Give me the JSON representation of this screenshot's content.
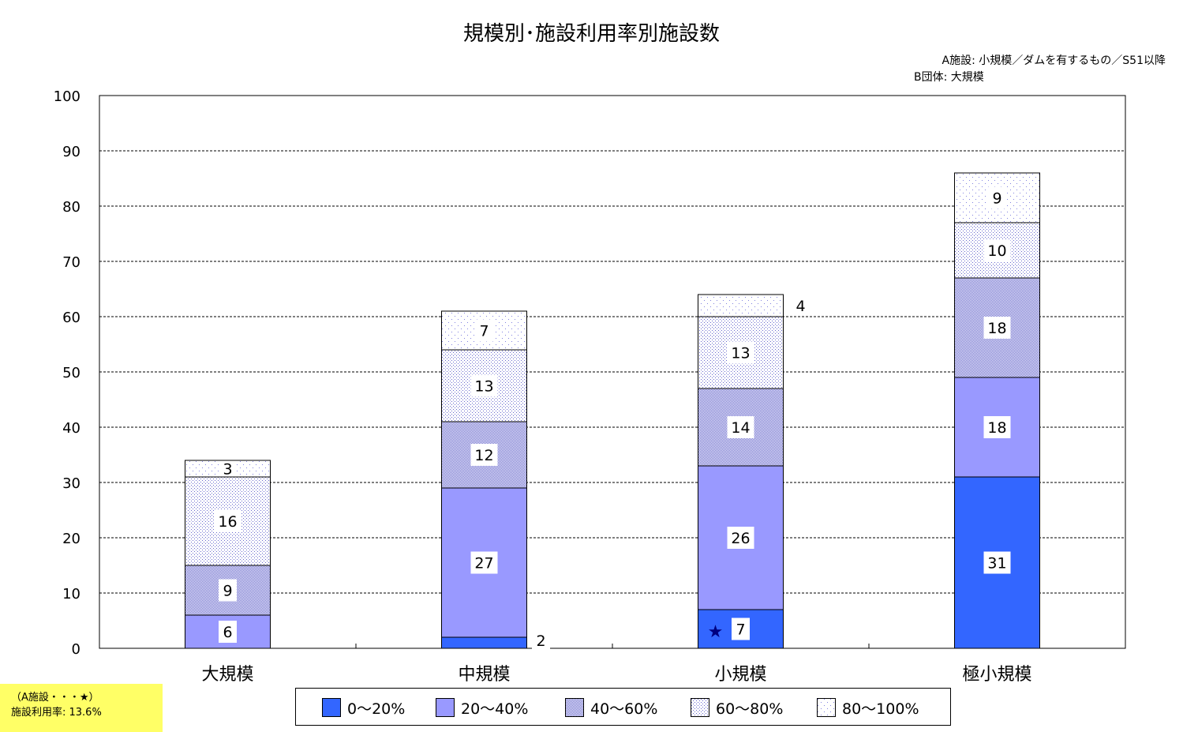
{
  "title": "規模別･施設利用率別施設数",
  "notes": {
    "line1": "A施設: 小規模／ダムを有するもの／S51以降",
    "line2": "B団体: 大規模"
  },
  "annotation": {
    "line1": "（A施設・・・★）",
    "line2": "施設利用率: 13.6%",
    "marker": "★",
    "marker_category_index": 2
  },
  "colors": {
    "s0": "#3366ff",
    "s1": "#9999ff",
    "hatch": "#6666cc",
    "dot": "#8080e0",
    "star": "#000080",
    "annotation_bg": "#ffff66"
  },
  "chart_data": {
    "type": "bar",
    "stacked": true,
    "categories": [
      "大規模",
      "中規模",
      "小規模",
      "極小規模"
    ],
    "series": [
      {
        "name": "0～20%",
        "values": [
          0,
          2,
          7,
          31
        ],
        "pattern": "solid-blue"
      },
      {
        "name": "20～40%",
        "values": [
          6,
          27,
          26,
          18
        ],
        "pattern": "solid-lavender"
      },
      {
        "name": "40～60%",
        "values": [
          9,
          12,
          14,
          18
        ],
        "pattern": "dense-crosshatch"
      },
      {
        "name": "60～80%",
        "values": [
          16,
          13,
          13,
          10
        ],
        "pattern": "medium-dots"
      },
      {
        "name": "80～100%",
        "values": [
          3,
          7,
          4,
          9
        ],
        "pattern": "sparse-dots"
      }
    ],
    "ylim": [
      0,
      100
    ],
    "yticks": [
      0,
      10,
      20,
      30,
      40,
      50,
      60,
      70,
      80,
      90,
      100
    ],
    "grid": "horizontal-dashed",
    "legend_position": "bottom"
  }
}
